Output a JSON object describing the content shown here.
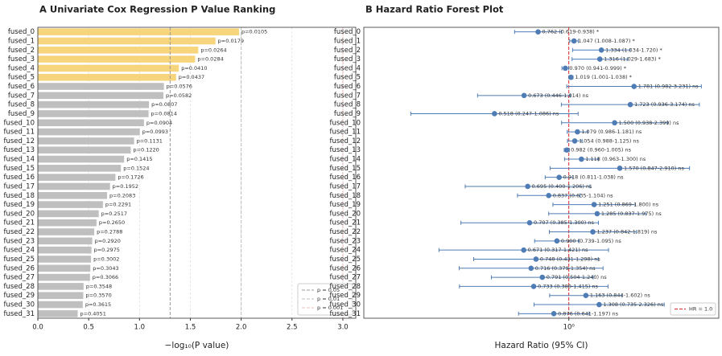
{
  "chart_data": [
    {
      "type": "bar",
      "orientation": "horizontal",
      "title": "A  Univariate Cox Regression P Value Ranking",
      "x_label": "−log₁₀(P value)",
      "categories": [
        "fused_0",
        "fused_1",
        "fused_2",
        "fused_3",
        "fused_4",
        "fused_5",
        "fused_6",
        "fused_7",
        "fused_8",
        "fused_9",
        "fused_10",
        "fused_11",
        "fused_12",
        "fused_13",
        "fused_14",
        "fused_15",
        "fused_16",
        "fused_17",
        "fused_18",
        "fused_19",
        "fused_20",
        "fused_21",
        "fused_22",
        "fused_23",
        "fused_24",
        "fused_25",
        "fused_26",
        "fused_27",
        "fused_28",
        "fused_29",
        "fused_30",
        "fused_31"
      ],
      "values": [
        1.979,
        1.747,
        1.578,
        1.547,
        1.387,
        1.36,
        1.24,
        1.235,
        1.093,
        1.089,
        1.044,
        1.003,
        0.947,
        0.914,
        0.849,
        0.817,
        0.763,
        0.71,
        0.681,
        0.64,
        0.599,
        0.577,
        0.555,
        0.535,
        0.527,
        0.523,
        0.517,
        0.513,
        0.45,
        0.447,
        0.442,
        0.392
      ],
      "value_labels": [
        "p=0.0105",
        "p=0.0179",
        "p=0.0264",
        "p=0.0284",
        "p=0.0410",
        "p=0.0437",
        "p=0.0576",
        "p=0.0582",
        "p=0.0807",
        "p=0.0814",
        "p=0.0904",
        "p=0.0993",
        "p=0.1131",
        "p=0.1220",
        "p=0.1415",
        "p=0.1524",
        "p=0.1726",
        "p=0.1952",
        "p=0.2083",
        "p=0.2291",
        "p=0.2517",
        "p=0.2650",
        "p=0.2788",
        "p=0.2920",
        "p=0.2975",
        "p=0.3002",
        "p=0.3043",
        "p=0.3066",
        "p=0.3548",
        "p=0.3570",
        "p=0.3615",
        "p=0.4051"
      ],
      "colors": [
        "#f6d57c",
        "#f6d57c",
        "#f6d57c",
        "#f6d57c",
        "#f6d57c",
        "#f6d57c",
        "#c0bfc0",
        "#c0bfc0",
        "#c0bfc0",
        "#c0bfc0",
        "#c0bfc0",
        "#c0bfc0",
        "#c0bfc0",
        "#c0bfc0",
        "#c0bfc0",
        "#c0bfc0",
        "#c0bfc0",
        "#c0bfc0",
        "#c0bfc0",
        "#c0bfc0",
        "#c0bfc0",
        "#c0bfc0",
        "#c0bfc0",
        "#c0bfc0",
        "#c0bfc0",
        "#c0bfc0",
        "#c0bfc0",
        "#c0bfc0",
        "#c0bfc0",
        "#c0bfc0",
        "#c0bfc0",
        "#c0bfc0"
      ],
      "reference_lines": [
        {
          "value": 1.301,
          "label": "p = 0.05",
          "color": "#999999"
        },
        {
          "value": 2,
          "label": "p = 0.01",
          "color": "#bbbbbb"
        },
        {
          "value": 3,
          "label": "p = 0.001",
          "color": "#e8bcbc"
        }
      ],
      "xlim": [
        0,
        3.127
      ],
      "xticks": [
        {
          "value": 0,
          "label": "0.0"
        },
        {
          "value": 0.5,
          "label": "0.5"
        },
        {
          "value": 1,
          "label": "1.0"
        },
        {
          "value": 1.5,
          "label": "1.5"
        },
        {
          "value": 2,
          "label": "2.0"
        },
        {
          "value": 2.5,
          "label": "2.5"
        },
        {
          "value": 3,
          "label": "3.0"
        }
      ],
      "grid": true,
      "legend": "lower right"
    },
    {
      "type": "forest",
      "title": "B  Hazard Ratio Forest Plot",
      "x_label": "Hazard Ratio (95% CI)",
      "categories": [
        "fused_0",
        "fused_1",
        "fused_2",
        "fused_3",
        "fused_4",
        "fused_5",
        "fused_6",
        "fused_7",
        "fused_8",
        "fused_9",
        "fused_10",
        "fused_11",
        "fused_12",
        "fused_13",
        "fused_14",
        "fused_15",
        "fused_16",
        "fused_17",
        "fused_18",
        "fused_19",
        "fused_20",
        "fused_21",
        "fused_22",
        "fused_23",
        "fused_24",
        "fused_25",
        "fused_26",
        "fused_27",
        "fused_28",
        "fused_29",
        "fused_30",
        "fused_31"
      ],
      "values": [
        0.762,
        1.047,
        1.334,
        1.316,
        0.97,
        1.019,
        1.781,
        0.673,
        1.723,
        0.518,
        1.5,
        1.079,
        1.054,
        0.982,
        1.118,
        1.57,
        0.918,
        0.695,
        0.837,
        1.251,
        1.285,
        0.707,
        1.237,
        0.9,
        0.671,
        0.748,
        0.716,
        0.791,
        0.733,
        1.163,
        1.308,
        0.876
      ],
      "lower": [
        0.619,
        1.008,
        1.034,
        1.029,
        0.941,
        1.001,
        0.982,
        0.446,
        0.936,
        0.247,
        0.938,
        0.986,
        0.988,
        0.96,
        0.963,
        0.847,
        0.811,
        0.4,
        0.635,
        0.869,
        0.837,
        0.385,
        0.842,
        0.739,
        0.317,
        0.431,
        0.379,
        0.504,
        0.38,
        0.844,
        0.735,
        0.641
      ],
      "upper": [
        0.938,
        1.087,
        1.72,
        1.683,
        0.999,
        1.038,
        3.231,
        1.014,
        3.174,
        1.086,
        2.399,
        1.181,
        1.125,
        1.005,
        1.3,
        2.91,
        1.038,
        1.206,
        1.104,
        1.8,
        1.975,
        1.3,
        1.819,
        1.095,
        1.421,
        1.298,
        1.354,
        1.24,
        1.415,
        1.602,
        2.326,
        1.197
      ],
      "value_labels": [
        "0.762 (0.619-0.938) *",
        "1.047 (1.008-1.087) *",
        "1.334 (1.034-1.720) *",
        "1.316 (1.029-1.683) *",
        "0.970 (0.941-0.999) *",
        "1.019 (1.001-1.038) *",
        "1.781 (0.982-3.231) ns",
        "0.673 (0.446-1.014) ns",
        "1.723 (0.936-3.174) ns",
        "0.518 (0.247-1.086) ns",
        "1.500 (0.938-2.399) ns",
        "1.079 (0.986-1.181) ns",
        "1.054 (0.988-1.125) ns",
        "0.982 (0.960-1.005) ns",
        "1.118 (0.963-1.300) ns",
        "1.570 (0.847-2.910) ns",
        "0.918 (0.811-1.038) ns",
        "0.695 (0.400-1.206) ns",
        "0.837 (0.635-1.104) ns",
        "1.251 (0.869-1.800) ns",
        "1.285 (0.837-1.975) ns",
        "0.707 (0.385-1.300) ns",
        "1.237 (0.842-1.819) ns",
        "0.900 (0.739-1.095) ns",
        "0.671 (0.317-1.421) ns",
        "0.748 (0.431-1.298) ns",
        "0.716 (0.379-1.354) ns",
        "0.791 (0.504-1.240) ns",
        "0.733 (0.380-1.415) ns",
        "1.163 (0.844-1.602) ns",
        "1.308 (0.735-2.326) ns",
        "0.876 (0.641-1.197) ns"
      ],
      "color": "#4f7cb4",
      "reference_line": {
        "value": 1,
        "label": "HR = 1.0",
        "color": "#d62728"
      },
      "xscale": "log",
      "xlim": [
        0.163,
        3.77
      ],
      "xticks": [
        {
          "value": 1,
          "label": "10⁰"
        }
      ],
      "grid": true,
      "legend": "lower right"
    }
  ]
}
